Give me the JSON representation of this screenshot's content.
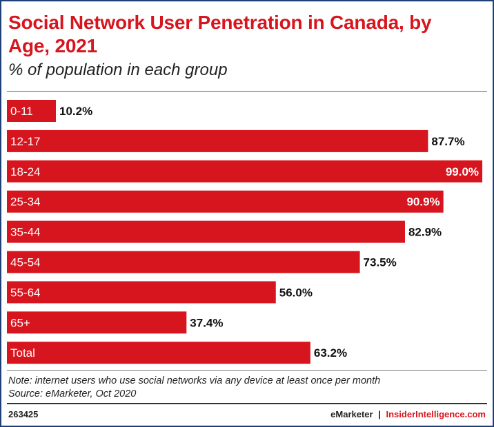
{
  "title": "Social Network User Penetration in Canada, by Age, 2021",
  "subtitle": "% of population in each group",
  "chart_data": {
    "type": "bar",
    "orientation": "horizontal",
    "categories": [
      "0-11",
      "12-17",
      "18-24",
      "25-34",
      "35-44",
      "45-54",
      "55-64",
      "65+",
      "Total"
    ],
    "values": [
      10.2,
      87.7,
      99.0,
      90.9,
      82.9,
      73.5,
      56.0,
      37.4,
      63.2
    ],
    "value_labels": [
      "10.2%",
      "87.7%",
      "99.0%",
      "90.9%",
      "82.9%",
      "73.5%",
      "56.0%",
      "37.4%",
      "63.2%"
    ],
    "xlim": [
      0,
      100
    ],
    "bar_color": "#d7151e",
    "grid": false,
    "legend": "none"
  },
  "notes": [
    "Note: internet users who use social networks via any device at least once per month",
    "Source: eMarketer, Oct 2020"
  ],
  "footer": {
    "chart_id": "263425",
    "brand_left": "eMarketer",
    "separator": "|",
    "brand_right": "InsiderIntelligence.com"
  }
}
